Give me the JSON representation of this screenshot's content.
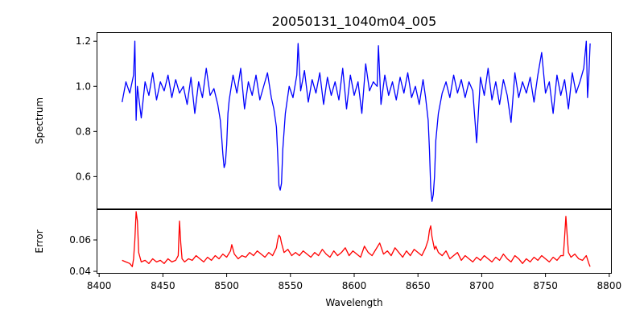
{
  "chart_data": [
    {
      "type": "line",
      "title": "20050131_1040m04_005",
      "xlabel": "",
      "ylabel": "Spectrum",
      "xlim": [
        8398,
        8802
      ],
      "ylim": [
        0.455,
        1.24
      ],
      "yticks": [
        0.6,
        0.8,
        1.0,
        1.2
      ],
      "ytick_labels": [
        "0.6",
        "0.8",
        "1.0",
        "1.2"
      ],
      "grid": false,
      "series": [
        {
          "color": "#0000ff",
          "x": [
            8418,
            8421,
            8424,
            8427,
            8428,
            8429,
            8430,
            8433,
            8436,
            8439,
            8442,
            8445,
            8448,
            8451,
            8454,
            8457,
            8460,
            8463,
            8466,
            8469,
            8472,
            8475,
            8478,
            8481,
            8484,
            8487,
            8490,
            8493,
            8495,
            8496,
            8497,
            8498,
            8499,
            8500,
            8501,
            8502,
            8505,
            8508,
            8511,
            8514,
            8517,
            8520,
            8523,
            8526,
            8529,
            8532,
            8535,
            8537,
            8539,
            8540,
            8541,
            8542,
            8543,
            8544,
            8546,
            8549,
            8552,
            8555,
            8556,
            8558,
            8561,
            8564,
            8567,
            8570,
            8573,
            8576,
            8579,
            8582,
            8585,
            8588,
            8591,
            8594,
            8597,
            8600,
            8603,
            8606,
            8609,
            8612,
            8615,
            8618,
            8619,
            8621,
            8624,
            8627,
            8630,
            8633,
            8636,
            8639,
            8642,
            8645,
            8648,
            8651,
            8654,
            8656,
            8658,
            8659,
            8660,
            8661,
            8662,
            8663,
            8664,
            8666,
            8669,
            8672,
            8675,
            8678,
            8681,
            8684,
            8687,
            8690,
            8693,
            8696,
            8699,
            8702,
            8705,
            8708,
            8711,
            8714,
            8717,
            8720,
            8723,
            8726,
            8729,
            8732,
            8735,
            8738,
            8741,
            8744,
            8747,
            8750,
            8753,
            8756,
            8759,
            8762,
            8765,
            8768,
            8771,
            8774,
            8777,
            8780,
            8782,
            8783,
            8784,
            8785
          ],
          "y": [
            0.93,
            1.02,
            0.97,
            1.05,
            1.2,
            0.85,
            1.0,
            0.86,
            1.02,
            0.96,
            1.06,
            0.94,
            1.02,
            0.98,
            1.05,
            0.95,
            1.03,
            0.97,
            1.0,
            0.92,
            1.04,
            0.88,
            1.02,
            0.95,
            1.08,
            0.96,
            0.99,
            0.92,
            0.85,
            0.78,
            0.7,
            0.64,
            0.66,
            0.74,
            0.88,
            0.94,
            1.05,
            0.97,
            1.08,
            0.9,
            1.02,
            0.96,
            1.05,
            0.94,
            1.0,
            1.06,
            0.95,
            0.9,
            0.82,
            0.7,
            0.56,
            0.54,
            0.57,
            0.72,
            0.88,
            1.0,
            0.95,
            1.05,
            1.19,
            0.98,
            1.07,
            0.93,
            1.03,
            0.97,
            1.06,
            0.92,
            1.04,
            0.96,
            1.02,
            0.94,
            1.08,
            0.9,
            1.05,
            0.96,
            1.02,
            0.88,
            1.1,
            0.98,
            1.02,
            1.0,
            1.18,
            0.92,
            1.05,
            0.96,
            1.02,
            0.94,
            1.04,
            0.97,
            1.06,
            0.95,
            1.0,
            0.92,
            1.03,
            0.95,
            0.85,
            0.72,
            0.55,
            0.49,
            0.52,
            0.6,
            0.76,
            0.88,
            0.97,
            1.02,
            0.95,
            1.05,
            0.97,
            1.03,
            0.95,
            1.02,
            0.98,
            0.75,
            1.04,
            0.96,
            1.08,
            0.94,
            1.02,
            0.92,
            1.03,
            0.96,
            0.84,
            1.06,
            0.95,
            1.02,
            0.97,
            1.04,
            0.93,
            1.05,
            1.15,
            0.97,
            1.02,
            0.88,
            1.05,
            0.96,
            1.03,
            0.9,
            1.06,
            0.97,
            1.02,
            1.08,
            1.2,
            0.95,
            1.05,
            1.19
          ]
        }
      ]
    },
    {
      "type": "line",
      "title": "",
      "xlabel": "Wavelength",
      "ylabel": "Error",
      "xlim": [
        8398,
        8802
      ],
      "ylim": [
        0.0385,
        0.0795
      ],
      "xticks": [
        8400,
        8450,
        8500,
        8550,
        8600,
        8650,
        8700,
        8750,
        8800
      ],
      "xtick_labels": [
        "8400",
        "8450",
        "8500",
        "8550",
        "8600",
        "8650",
        "8700",
        "8750",
        "8800"
      ],
      "yticks": [
        0.04,
        0.06
      ],
      "ytick_labels": [
        "0.04",
        "0.06"
      ],
      "grid": false,
      "series": [
        {
          "color": "#ff0000",
          "x": [
            8418,
            8421,
            8424,
            8426,
            8427,
            8428,
            8429,
            8430,
            8431,
            8433,
            8436,
            8439,
            8442,
            8445,
            8448,
            8451,
            8454,
            8457,
            8460,
            8462,
            8463,
            8464,
            8465,
            8467,
            8470,
            8473,
            8476,
            8479,
            8482,
            8485,
            8488,
            8491,
            8494,
            8497,
            8500,
            8503,
            8504,
            8506,
            8509,
            8512,
            8515,
            8518,
            8521,
            8524,
            8527,
            8530,
            8533,
            8536,
            8539,
            8540,
            8541,
            8542,
            8543,
            8545,
            8548,
            8551,
            8554,
            8557,
            8560,
            8563,
            8566,
            8569,
            8572,
            8575,
            8578,
            8581,
            8584,
            8587,
            8590,
            8593,
            8596,
            8599,
            8602,
            8605,
            8608,
            8611,
            8614,
            8617,
            8620,
            8623,
            8626,
            8629,
            8632,
            8635,
            8638,
            8641,
            8644,
            8647,
            8650,
            8653,
            8656,
            8658,
            8659,
            8660,
            8661,
            8662,
            8663,
            8664,
            8666,
            8669,
            8672,
            8675,
            8678,
            8681,
            8684,
            8687,
            8690,
            8693,
            8696,
            8699,
            8702,
            8705,
            8708,
            8711,
            8714,
            8717,
            8720,
            8723,
            8726,
            8729,
            8732,
            8735,
            8738,
            8741,
            8744,
            8747,
            8750,
            8753,
            8756,
            8759,
            8762,
            8764,
            8765,
            8766,
            8767,
            8768,
            8770,
            8773,
            8776,
            8779,
            8782,
            8784,
            8785
          ],
          "y": [
            0.047,
            0.046,
            0.045,
            0.043,
            0.048,
            0.06,
            0.078,
            0.072,
            0.052,
            0.046,
            0.047,
            0.045,
            0.048,
            0.046,
            0.047,
            0.045,
            0.048,
            0.046,
            0.047,
            0.05,
            0.072,
            0.058,
            0.048,
            0.046,
            0.048,
            0.047,
            0.05,
            0.048,
            0.046,
            0.049,
            0.047,
            0.05,
            0.048,
            0.051,
            0.049,
            0.053,
            0.057,
            0.051,
            0.048,
            0.05,
            0.049,
            0.052,
            0.05,
            0.053,
            0.051,
            0.049,
            0.052,
            0.05,
            0.055,
            0.06,
            0.063,
            0.062,
            0.058,
            0.052,
            0.054,
            0.05,
            0.052,
            0.05,
            0.053,
            0.051,
            0.049,
            0.052,
            0.05,
            0.054,
            0.051,
            0.049,
            0.053,
            0.05,
            0.052,
            0.055,
            0.05,
            0.053,
            0.051,
            0.049,
            0.056,
            0.052,
            0.05,
            0.054,
            0.058,
            0.051,
            0.053,
            0.05,
            0.055,
            0.052,
            0.049,
            0.053,
            0.05,
            0.054,
            0.052,
            0.05,
            0.055,
            0.06,
            0.066,
            0.069,
            0.062,
            0.058,
            0.054,
            0.056,
            0.052,
            0.05,
            0.053,
            0.048,
            0.05,
            0.052,
            0.047,
            0.05,
            0.048,
            0.046,
            0.049,
            0.047,
            0.05,
            0.048,
            0.046,
            0.049,
            0.047,
            0.051,
            0.048,
            0.046,
            0.05,
            0.048,
            0.045,
            0.048,
            0.046,
            0.049,
            0.047,
            0.05,
            0.048,
            0.046,
            0.049,
            0.047,
            0.05,
            0.05,
            0.062,
            0.075,
            0.063,
            0.052,
            0.049,
            0.051,
            0.048,
            0.047,
            0.05,
            0.045,
            0.043
          ]
        }
      ]
    }
  ]
}
